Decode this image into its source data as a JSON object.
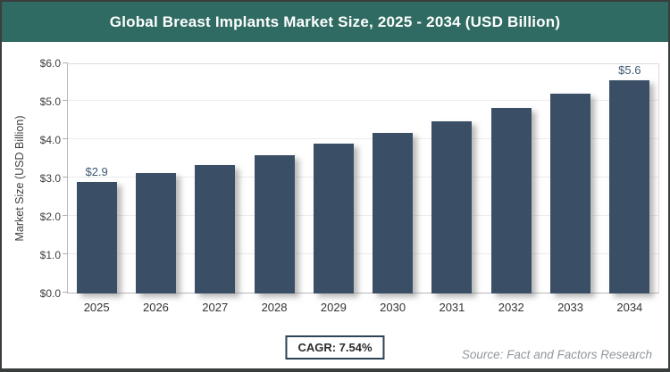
{
  "header": {
    "title": "Global Breast Implants Market Size, 2025 - 2034 (USD Billion)"
  },
  "chart_data": {
    "type": "bar",
    "title": "Global Breast Implants Market Size, 2025 - 2034 (USD Billion)",
    "categories": [
      "2025",
      "2026",
      "2027",
      "2028",
      "2029",
      "2030",
      "2031",
      "2032",
      "2033",
      "2034"
    ],
    "values": [
      2.9,
      3.13,
      3.36,
      3.61,
      3.9,
      4.19,
      4.5,
      4.84,
      5.2,
      5.6
    ],
    "point_labels": [
      "$2.9",
      "",
      "",
      "",
      "",
      "",
      "",
      "",
      "",
      "$5.6"
    ],
    "xlabel": "",
    "ylabel": "Market Size (USD Billion)",
    "ylim": [
      0,
      6
    ],
    "ytick_values": [
      0,
      1,
      2,
      3,
      4,
      5,
      6
    ],
    "ytick_labels": [
      "$0.0",
      "$1.0",
      "$2.0",
      "$3.0",
      "$4.0",
      "$5.0",
      "$6.0"
    ],
    "grid": "horizontal",
    "legend": "none"
  },
  "footer": {
    "cagr_label": "CAGR: 7.54%",
    "source": "Source: Fact and Factors Research"
  },
  "colors": {
    "banner": "#2f6b62",
    "bar": "#3a4f66",
    "value_label": "#3f5872",
    "cagr_border": "#2d4356",
    "source_text": "#8f989f"
  }
}
